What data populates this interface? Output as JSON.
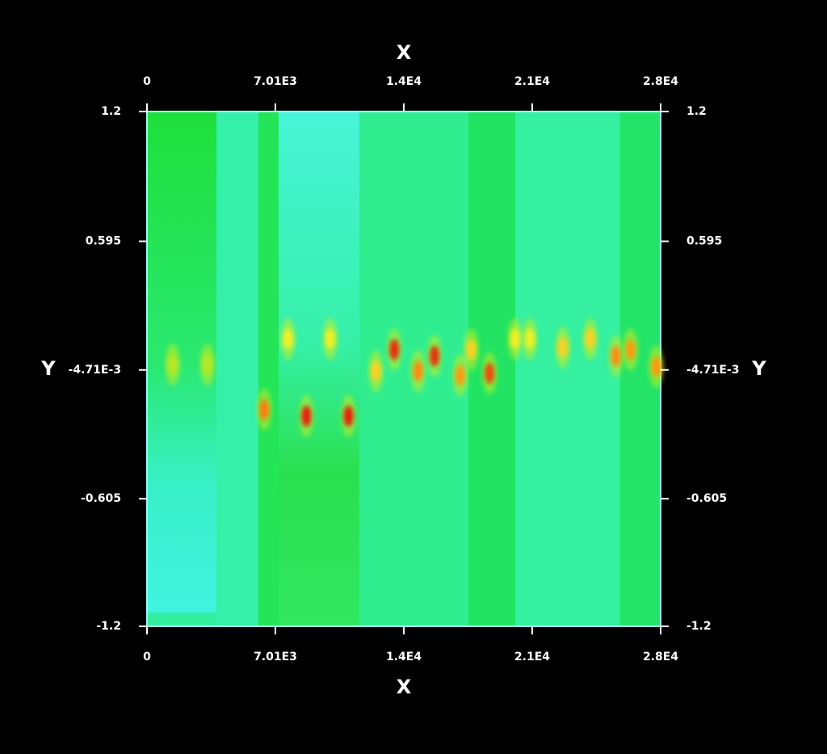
{
  "chart_data": {
    "type": "heatmap",
    "x_label": "X",
    "y_label": "Y",
    "xlim": [
      0,
      28040
    ],
    "ylim": [
      -1.2,
      1.2
    ],
    "xticks": [
      0,
      {
        "value": 7010,
        "label": "7.01E3"
      },
      {
        "value": 14020,
        "label": "1.4E4"
      },
      {
        "value": 21030,
        "label": "2.1E4"
      },
      {
        "value": 28040,
        "label": "2.8E4"
      }
    ],
    "yticks": [
      1.2,
      0.595,
      {
        "value": -0.00471,
        "label": "-4.71E-3"
      },
      -0.605,
      -1.2
    ],
    "peaks": {
      "x": [
        1400,
        3300,
        6400,
        7700,
        8700,
        10000,
        11000,
        12500,
        13500,
        14800,
        15700,
        17100,
        17700,
        18700,
        20100,
        20900,
        22700,
        24200,
        25600,
        26400,
        27800
      ],
      "y": [
        0.02,
        0.02,
        -0.19,
        0.14,
        -0.22,
        0.14,
        -0.22,
        -0.01,
        0.09,
        -0.01,
        0.06,
        -0.03,
        0.09,
        -0.02,
        0.14,
        0.14,
        0.1,
        0.14,
        0.06,
        0.09,
        0.01
      ],
      "colors": [
        "#b8e820",
        "#b8e820",
        "#ff7a10",
        "#f4f020",
        "#e81a10",
        "#f4f020",
        "#e81a10",
        "#ffd020",
        "#e82a10",
        "#ff8a10",
        "#e83010",
        "#ff9a10",
        "#ffd020",
        "#f04a10",
        "#f4f020",
        "#f4f020",
        "#ffd020",
        "#ffd020",
        "#ff8a10",
        "#ff9a10",
        "#ff9a10"
      ]
    }
  }
}
